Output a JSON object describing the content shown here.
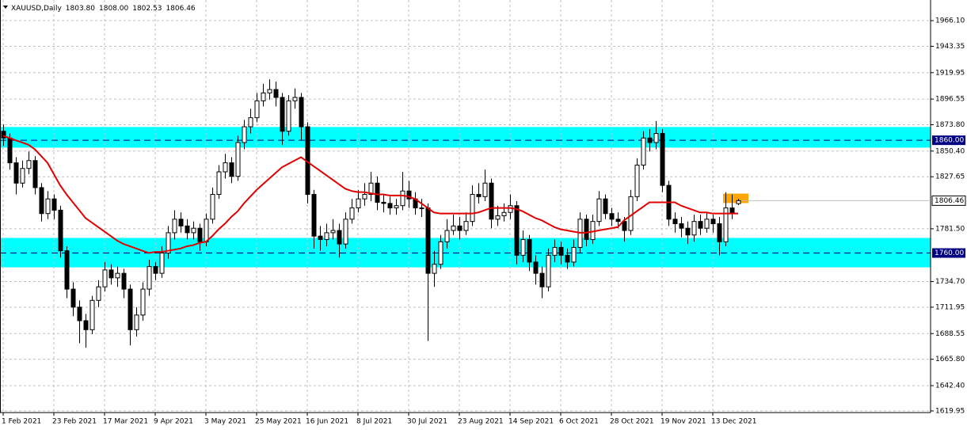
{
  "chart_data": {
    "type": "candlestick",
    "title": "XAUUSD,Daily",
    "header_values": [
      {
        "value": 1803.8,
        "label": "1803.80"
      },
      {
        "value": 1808,
        "label": "1808.00"
      },
      {
        "value": 1802.53,
        "label": "1802.53"
      },
      {
        "value": 1806.46,
        "label": "1806.46"
      }
    ],
    "categories": [
      "1 Feb 2021",
      null,
      null,
      null,
      null,
      null,
      null,
      null,
      "23 Feb 2021",
      null,
      null,
      null,
      null,
      null,
      null,
      null,
      "17 Mar 2021",
      null,
      null,
      null,
      null,
      null,
      null,
      null,
      "9 Apr 2021",
      null,
      null,
      null,
      null,
      null,
      null,
      null,
      "3 May 2021",
      null,
      null,
      null,
      null,
      null,
      null,
      null,
      "25 May 2021",
      null,
      null,
      null,
      null,
      null,
      null,
      null,
      "16 Jun 2021",
      null,
      null,
      null,
      null,
      null,
      null,
      null,
      "8 Jul 2021",
      null,
      null,
      null,
      null,
      null,
      null,
      null,
      "30 Jul 2021",
      null,
      null,
      null,
      null,
      null,
      null,
      null,
      "23 Aug 2021",
      null,
      null,
      null,
      null,
      null,
      null,
      null,
      "14 Sep 2021",
      null,
      null,
      null,
      null,
      null,
      null,
      null,
      "6 Oct 2021",
      null,
      null,
      null,
      null,
      null,
      null,
      null,
      "28 Oct 2021",
      null,
      null,
      null,
      null,
      null,
      null,
      null,
      "19 Nov 2021",
      null,
      null,
      null,
      null,
      null,
      null,
      null,
      "13 Dec 2021",
      null,
      null,
      null,
      null
    ],
    "open": [
      1868,
      1862,
      1840,
      1822,
      1835,
      1842,
      1818,
      1795,
      1808,
      1798,
      1762,
      1728,
      1712,
      1700,
      1692,
      1718,
      1730,
      1745,
      1738,
      1742,
      1728,
      1692,
      1705,
      1728,
      1748,
      1742,
      1760,
      1778,
      1790,
      1784,
      1778,
      1782,
      1770,
      1790,
      1812,
      1832,
      1840,
      1828,
      1858,
      1872,
      1880,
      1895,
      1902,
      1905,
      1898,
      1868,
      1895,
      1898,
      1872,
      1812,
      1775,
      1772,
      1778,
      1780,
      1768,
      1790,
      1800,
      1808,
      1812,
      1822,
      1805,
      1804,
      1800,
      1802,
      1815,
      1808,
      1800,
      1800,
      1742,
      1750,
      1770,
      1780,
      1784,
      1780,
      1788,
      1812,
      1810,
      1822,
      1790,
      1793,
      1796,
      1802,
      1758,
      1772,
      1752,
      1742,
      1730,
      1758,
      1765,
      1758,
      1752,
      1765,
      1790,
      1772,
      1788,
      1808,
      1795,
      1790,
      1788,
      1780,
      1810,
      1838,
      1862,
      1858,
      1866,
      1820,
      1790,
      1786,
      1782,
      1776,
      1788,
      1782,
      1790,
      1786,
      1770,
      1800,
      1803.8
    ],
    "high": [
      1874,
      1866,
      1845,
      1842,
      1850,
      1846,
      1822,
      1815,
      1812,
      1802,
      1766,
      1734,
      1718,
      1706,
      1722,
      1736,
      1752,
      1750,
      1748,
      1746,
      1732,
      1712,
      1734,
      1754,
      1752,
      1766,
      1784,
      1798,
      1796,
      1790,
      1788,
      1786,
      1795,
      1818,
      1838,
      1848,
      1845,
      1864,
      1878,
      1888,
      1902,
      1910,
      1914,
      1912,
      1902,
      1900,
      1906,
      1902,
      1876,
      1816,
      1784,
      1786,
      1790,
      1786,
      1796,
      1808,
      1816,
      1822,
      1832,
      1828,
      1812,
      1810,
      1808,
      1832,
      1824,
      1814,
      1808,
      1804,
      1762,
      1776,
      1790,
      1794,
      1792,
      1796,
      1820,
      1822,
      1834,
      1826,
      1802,
      1804,
      1812,
      1806,
      1780,
      1776,
      1758,
      1748,
      1764,
      1772,
      1770,
      1764,
      1772,
      1796,
      1794,
      1794,
      1815,
      1812,
      1800,
      1796,
      1792,
      1816,
      1844,
      1868,
      1870,
      1877,
      1870,
      1824,
      1796,
      1792,
      1788,
      1794,
      1794,
      1796,
      1794,
      1792,
      1814,
      1812,
      1808
    ],
    "low": [
      1855,
      1834,
      1812,
      1818,
      1830,
      1812,
      1788,
      1790,
      1790,
      1756,
      1720,
      1704,
      1680,
      1676,
      1688,
      1712,
      1726,
      1732,
      1730,
      1720,
      1678,
      1686,
      1700,
      1722,
      1736,
      1738,
      1755,
      1772,
      1778,
      1772,
      1772,
      1762,
      1766,
      1786,
      1808,
      1826,
      1822,
      1824,
      1852,
      1866,
      1876,
      1890,
      1896,
      1890,
      1856,
      1864,
      1888,
      1860,
      1804,
      1764,
      1762,
      1766,
      1772,
      1756,
      1764,
      1786,
      1796,
      1802,
      1806,
      1798,
      1796,
      1794,
      1794,
      1798,
      1800,
      1794,
      1792,
      1682,
      1730,
      1746,
      1764,
      1776,
      1772,
      1776,
      1784,
      1804,
      1806,
      1782,
      1784,
      1788,
      1790,
      1750,
      1752,
      1744,
      1732,
      1720,
      1726,
      1752,
      1750,
      1746,
      1748,
      1760,
      1766,
      1768,
      1784,
      1790,
      1784,
      1782,
      1770,
      1776,
      1806,
      1834,
      1850,
      1852,
      1814,
      1784,
      1778,
      1774,
      1768,
      1770,
      1776,
      1778,
      1778,
      1758,
      1766,
      1790,
      1802.53
    ],
    "close": [
      1862,
      1840,
      1822,
      1835,
      1842,
      1818,
      1795,
      1808,
      1798,
      1762,
      1728,
      1712,
      1700,
      1692,
      1718,
      1730,
      1745,
      1738,
      1742,
      1728,
      1692,
      1705,
      1728,
      1748,
      1742,
      1760,
      1778,
      1790,
      1784,
      1778,
      1782,
      1770,
      1790,
      1812,
      1832,
      1840,
      1828,
      1858,
      1872,
      1880,
      1895,
      1902,
      1905,
      1898,
      1868,
      1895,
      1898,
      1872,
      1812,
      1775,
      1772,
      1778,
      1780,
      1768,
      1790,
      1800,
      1808,
      1812,
      1822,
      1805,
      1804,
      1800,
      1802,
      1815,
      1808,
      1800,
      1800,
      1742,
      1750,
      1770,
      1780,
      1784,
      1780,
      1788,
      1812,
      1810,
      1822,
      1790,
      1793,
      1796,
      1802,
      1758,
      1772,
      1752,
      1742,
      1730,
      1758,
      1765,
      1758,
      1752,
      1765,
      1790,
      1772,
      1788,
      1808,
      1795,
      1790,
      1788,
      1780,
      1810,
      1838,
      1862,
      1858,
      1866,
      1820,
      1790,
      1786,
      1782,
      1776,
      1788,
      1782,
      1790,
      1786,
      1770,
      1800,
      1795,
      1806.46
    ],
    "ma": {
      "color": "#e00000",
      "values": [
        1864,
        1862,
        1860,
        1858,
        1856,
        1852,
        1846,
        1840,
        1830,
        1820,
        1812,
        1805,
        1798,
        1791,
        1787,
        1783,
        1779,
        1775,
        1771,
        1768,
        1766,
        1764,
        1762,
        1760,
        1761,
        1761,
        1762,
        1763,
        1764,
        1766,
        1767,
        1769,
        1770,
        1775,
        1781,
        1786,
        1792,
        1797,
        1804,
        1810,
        1816,
        1821,
        1826,
        1831,
        1836,
        1839,
        1842,
        1845,
        1841,
        1837,
        1833,
        1829,
        1825,
        1821,
        1817,
        1815,
        1814,
        1814,
        1813,
        1812,
        1812,
        1811,
        1811,
        1811,
        1810,
        1808,
        1804,
        1800,
        1796,
        1795,
        1795,
        1795,
        1795,
        1795,
        1795,
        1796,
        1798,
        1800,
        1800,
        1800,
        1800,
        1799,
        1797,
        1794,
        1791,
        1789,
        1786,
        1783,
        1781,
        1780,
        1779,
        1778,
        1778,
        1779,
        1780,
        1781,
        1782,
        1783,
        1789,
        1793,
        1797,
        1801,
        1805,
        1805,
        1805,
        1805,
        1805,
        1802,
        1800,
        1798,
        1796,
        1796,
        1795,
        1795,
        1795,
        1795,
        1795
      ]
    },
    "ylim": [
      1618.5,
      1984.4
    ],
    "yticks": [
      {
        "value": 1966.1,
        "label": "1966.10"
      },
      {
        "value": 1943.35,
        "label": "1943.35"
      },
      {
        "value": 1919.95,
        "label": "1919.95"
      },
      {
        "value": 1896.55,
        "label": "1896.55"
      },
      {
        "value": 1873.8,
        "label": "1873.80"
      },
      {
        "value": 1850.4,
        "label": "1850.40"
      },
      {
        "value": 1827.65,
        "label": "1827.65"
      },
      {
        "value": 1781.5,
        "label": "1781.50"
      },
      {
        "value": 1734.7,
        "label": "1734.70"
      },
      {
        "value": 1711.95,
        "label": "1711.95"
      },
      {
        "value": 1688.55,
        "label": "1688.55"
      },
      {
        "value": 1665.8,
        "label": "1665.80"
      },
      {
        "value": 1642.4,
        "label": "1642.40"
      },
      {
        "value": 1619.95,
        "label": "1619.95"
      }
    ],
    "grid": true,
    "zones": [
      {
        "from": 1853.5,
        "to": 1871.8,
        "color": "#00ffff"
      },
      {
        "from": 1747.3,
        "to": 1773.4,
        "color": "#00ffff"
      }
    ],
    "levels": [
      {
        "value": 1860,
        "label": "1860.00",
        "color": "#000080"
      },
      {
        "value": 1760,
        "label": "1760.00",
        "color": "#000080"
      }
    ],
    "highlight": {
      "from": 1804.3,
      "to": 1812.7,
      "color": "#ffa500"
    },
    "bid": {
      "value": 1806.46,
      "label": "1806.46"
    }
  }
}
